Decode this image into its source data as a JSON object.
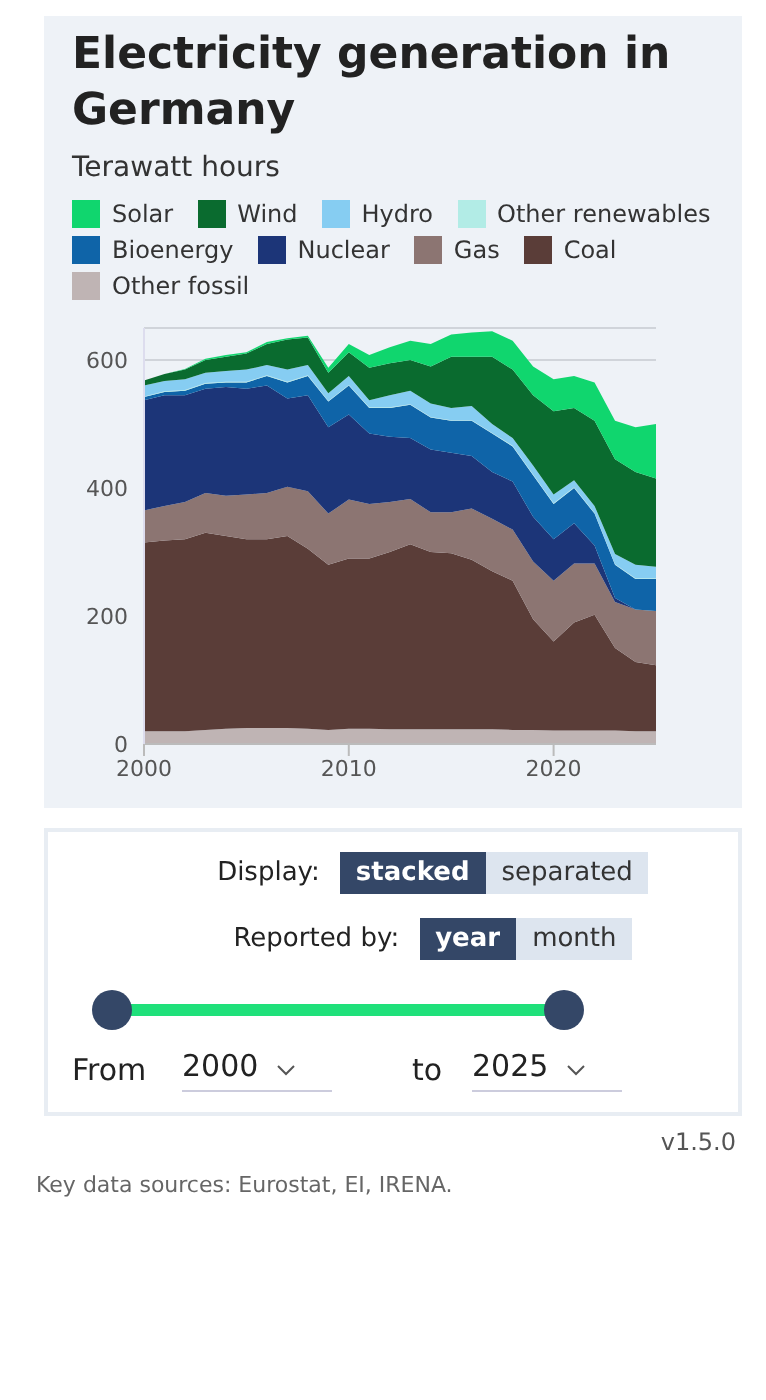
{
  "chart_data": {
    "type": "area",
    "title": "Electricity generation in Germany",
    "subtitle": "Terawatt hours",
    "x": [
      2000,
      2001,
      2002,
      2003,
      2004,
      2005,
      2006,
      2007,
      2008,
      2009,
      2010,
      2011,
      2012,
      2013,
      2014,
      2015,
      2016,
      2017,
      2018,
      2019,
      2020,
      2021,
      2022,
      2023,
      2024,
      2025
    ],
    "stacked": true,
    "series": [
      {
        "name": "Other fossil",
        "color": "#bfb4b4",
        "values": [
          20,
          20,
          20,
          22,
          24,
          25,
          25,
          25,
          24,
          22,
          24,
          24,
          23,
          23,
          23,
          23,
          23,
          23,
          22,
          22,
          21,
          21,
          21,
          21,
          20,
          20
        ]
      },
      {
        "name": "Coal",
        "color": "#5a3d38",
        "values": [
          295,
          298,
          300,
          308,
          301,
          295,
          295,
          300,
          281,
          258,
          266,
          266,
          277,
          289,
          277,
          275,
          265,
          247,
          233,
          173,
          139,
          169,
          181,
          129,
          108,
          103
        ]
      },
      {
        "name": "Gas",
        "color": "#8c7572",
        "values": [
          50,
          54,
          58,
          62,
          63,
          70,
          72,
          77,
          90,
          80,
          92,
          85,
          78,
          71,
          62,
          64,
          80,
          82,
          80,
          90,
          95,
          92,
          80,
          72,
          82,
          85
        ]
      },
      {
        "name": "Nuclear",
        "color": "#1c3578",
        "values": [
          172,
          173,
          167,
          163,
          170,
          165,
          168,
          138,
          150,
          135,
          133,
          110,
          102,
          95,
          98,
          93,
          82,
          73,
          75,
          70,
          65,
          63,
          28,
          6,
          0,
          0
        ]
      },
      {
        "name": "Bioenergy",
        "color": "#0f64a8",
        "values": [
          5,
          5,
          7,
          8,
          7,
          10,
          15,
          25,
          30,
          40,
          45,
          40,
          45,
          52,
          50,
          50,
          55,
          60,
          55,
          65,
          55,
          55,
          50,
          52,
          48,
          50
        ]
      },
      {
        "name": "Other renewables",
        "color": "#b2ece6",
        "values": [
          1,
          1,
          1,
          1,
          1,
          1,
          1,
          1,
          1,
          1,
          1,
          1,
          1,
          1,
          1,
          1,
          1,
          1,
          1,
          1,
          1,
          1,
          1,
          1,
          1,
          1
        ]
      },
      {
        "name": "Hydro",
        "color": "#86cdf2",
        "values": [
          17,
          16,
          17,
          16,
          17,
          19,
          16,
          19,
          16,
          12,
          14,
          11,
          19,
          21,
          21,
          19,
          22,
          14,
          12,
          14,
          14,
          11,
          11,
          16,
          21,
          18
        ]
      },
      {
        "name": "Wind",
        "color": "#0a6b2f",
        "values": [
          8,
          11,
          15,
          20,
          22,
          25,
          33,
          47,
          43,
          32,
          37,
          51,
          50,
          48,
          58,
          80,
          77,
          105,
          107,
          110,
          130,
          113,
          133,
          148,
          145,
          138
        ]
      },
      {
        "name": "Solar",
        "color": "#10d66e",
        "values": [
          0,
          0,
          1,
          2,
          3,
          2,
          3,
          2,
          3,
          8,
          13,
          20,
          25,
          30,
          35,
          35,
          38,
          40,
          45,
          45,
          50,
          50,
          60,
          60,
          70,
          85
        ]
      }
    ],
    "xlim": [
      2000,
      2025
    ],
    "xticks": [
      2000,
      2010,
      2020
    ],
    "ylim": [
      0,
      650
    ],
    "yticks": [
      0,
      200,
      400,
      600
    ],
    "grid": "y",
    "legend": "top",
    "annotations": [
      "Display:",
      "stacked",
      "separated",
      "Reported by:",
      "year",
      "month",
      "From",
      "2000",
      "to",
      "2025",
      "v1.5.0",
      "Key data sources: Eurostat, EI, IRENA."
    ]
  }
}
